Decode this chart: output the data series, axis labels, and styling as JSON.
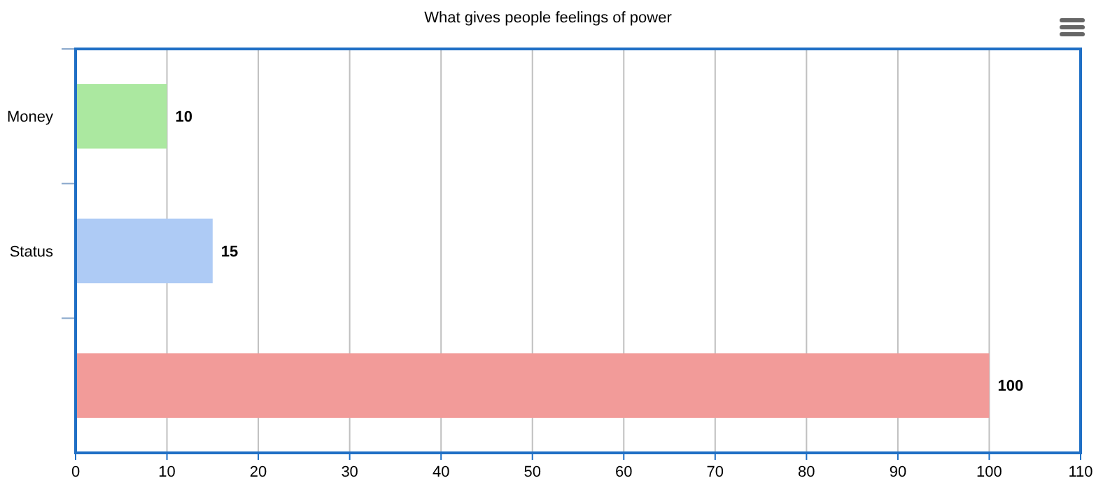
{
  "chart_data": {
    "type": "bar",
    "orientation": "horizontal",
    "title": "What gives people feelings of power",
    "categories": [
      "Money",
      "Status",
      null
    ],
    "values": [
      10,
      15,
      100
    ],
    "colors": [
      "#abe8a0",
      "#aecbf5",
      "#f29b99"
    ],
    "xlim": [
      0,
      110
    ],
    "xticks": [
      0,
      10,
      20,
      30,
      40,
      50,
      60,
      70,
      80,
      90,
      100,
      110
    ],
    "grid": "x",
    "data_labels": true
  }
}
